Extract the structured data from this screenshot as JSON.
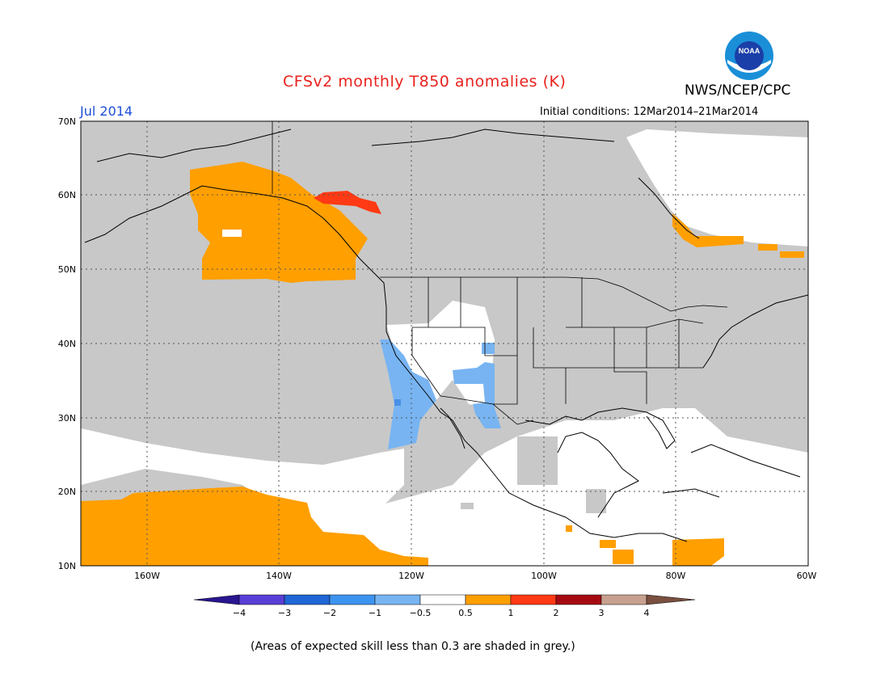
{
  "title": "CFSv2 monthly T850 anomalies (K)",
  "month": "Jul 2014",
  "initial_conditions": "Initial conditions: 12Mar2014–21Mar2014",
  "agency": "NWS/NCEP/CPC",
  "logo_text": "NOAA",
  "footnote": "(Areas of expected skill less than 0.3 are shaded in grey.)",
  "map": {
    "lon_ticks": [
      "160W",
      "140W",
      "120W",
      "100W",
      "80W",
      "60W"
    ],
    "lat_ticks": [
      "70N",
      "60N",
      "50N",
      "40N",
      "30N",
      "20N",
      "10N"
    ],
    "colors": {
      "no_skill": "#c8c8c8",
      "near_zero": "#ffffff",
      "warm_05_1": "#ff9f00",
      "warm_1_2": "#ff3a14",
      "cool_m1_m05": "#78b4f2",
      "cool_m2_m1": "#4a90e8"
    }
  },
  "colorbar": {
    "labels": [
      "−4",
      "−3",
      "−2",
      "−1",
      "−0.5",
      "0.5",
      "1",
      "2",
      "3",
      "4"
    ],
    "colors": [
      "#2a1590",
      "#5a3fd6",
      "#1f66d6",
      "#3d94f0",
      "#78b4f2",
      "#ffffff",
      "#ff9f00",
      "#ff3a14",
      "#a50a12",
      "#c8a090",
      "#7a5040"
    ]
  }
}
